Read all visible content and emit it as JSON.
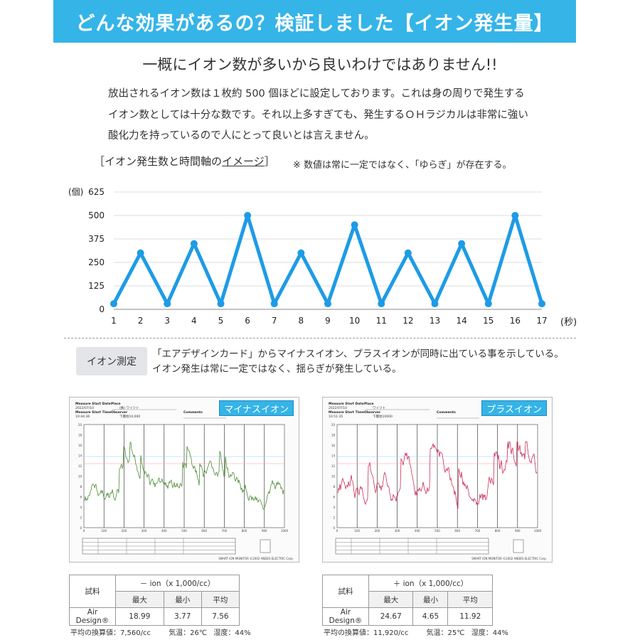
{
  "banner": {
    "title": "どんな効果があるの？検証しました【イオン発生量】"
  },
  "subhead": "一概にイオン数が多いから良いわけではありません!!",
  "body_lines": [
    "放出されるイオン数は１枚約 500 個ほどに設定しております。これは身の周りで発生する",
    "イオン数としては十分な数です。それ以上多すぎても、発生するＯＨラジカルは非常に強い",
    "酸化力を持っているので人にとって良いとは言えません。"
  ],
  "caption": {
    "bracket_open": "［イオン発生数と時間軸の",
    "underlined": "イメージ",
    "bracket_close": "］",
    "note": "※ 数値は常に一定ではなく、「ゆらぎ」が存在する。"
  },
  "chart_data": {
    "type": "line",
    "ylabel": "(個)",
    "xlabel": "(秒)",
    "x": [
      1,
      2,
      3,
      4,
      5,
      6,
      7,
      8,
      9,
      10,
      11,
      12,
      13,
      14,
      15,
      16,
      17
    ],
    "values": [
      30,
      300,
      30,
      350,
      30,
      500,
      30,
      300,
      30,
      450,
      30,
      300,
      30,
      350,
      30,
      500,
      30
    ],
    "yticks": [
      0,
      125,
      250,
      375,
      500,
      625
    ],
    "ylim": [
      0,
      625
    ],
    "grid": true,
    "color": "#1e9be6"
  },
  "measurement": {
    "tag": "イオン測定",
    "lines": [
      "「エアデザインカード」からマイナスイオン、プラスイオンが同時に出ている事を示している。",
      "イオン発生は常に一定ではなく、揺らぎが発生している。"
    ]
  },
  "reports": [
    {
      "label": "マイナスイオン",
      "header_fields": [
        "Measure Start Date",
        "Place",
        "Measure Start Time",
        "Observer",
        "Comments"
      ],
      "header_values": [
        "2022/07/10",
        "(株) ワイツト",
        "10:44:36",
        "下層柱10,000"
      ],
      "trace_color": "#4f8a35",
      "footer": "SMART ION MONITOR ©2002 ANDES ELECTRIC Corp."
    },
    {
      "label": "プラスイオン",
      "header_fields": [
        "Measure Start Date",
        "Place",
        "Measure Start Time",
        "Observer",
        "Comments"
      ],
      "header_values": [
        "2022/07/10",
        "ワイツト",
        "10:51:35",
        "下層柱10000"
      ],
      "trace_color": "#cc2f58",
      "footer": "SMART ION MONITOR ©2002 ANDES ELECTRIC Corp."
    }
  ],
  "stats_tables": [
    {
      "row_label": "試料",
      "group": "－ ion（x 1,000/cc）",
      "cols": [
        "最大",
        "最小",
        "平均"
      ],
      "sample": "Air Design®",
      "values": [
        "18.99",
        "3.77",
        "7.56"
      ],
      "note_avg": "平均の換算値：7,560/cc",
      "note_temp": "気温：26℃",
      "note_hum": "湿度：44%"
    },
    {
      "row_label": "試料",
      "group": "＋ ion（x 1,000/cc）",
      "cols": [
        "最大",
        "最小",
        "平均"
      ],
      "sample": "Air Design®",
      "values": [
        "24.67",
        "4.65",
        "11.92"
      ],
      "note_avg": "平均の換算値：11,920/cc",
      "note_temp": "気温：25℃",
      "note_hum": "湿度：44%"
    }
  ]
}
